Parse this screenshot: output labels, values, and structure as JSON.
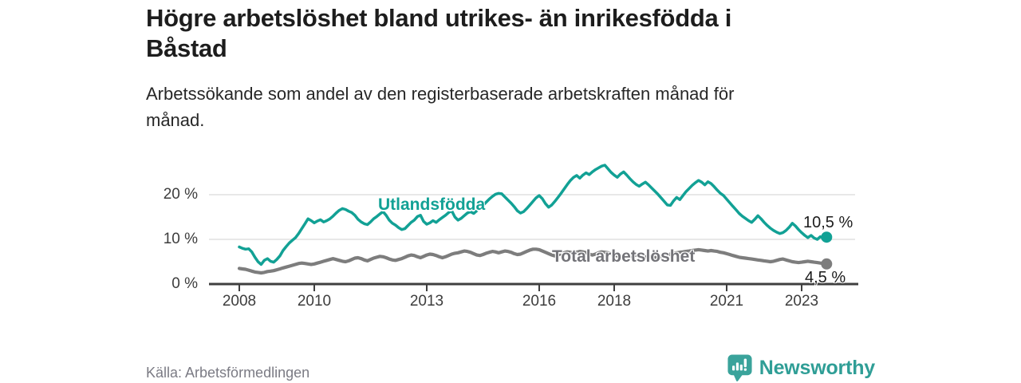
{
  "title": {
    "line1": "Högre arbetslöshet bland utrikes- än inrikesfödda i",
    "line2": "Båstad"
  },
  "subtitle": {
    "line1": "Arbetssökande som andel av den registerbaserade arbetskraften månad för",
    "line2": "månad."
  },
  "source": "Källa: Arbetsförmedlingen",
  "branding": {
    "name": "Newsworthy",
    "icon": "bar-chart-speech-bubble-icon",
    "wordmark_color": "#2f9e96",
    "icon_color": "#3aa39b"
  },
  "chart_data": {
    "type": "line",
    "unit": "%",
    "frequency": "monthly",
    "x_start": "2008-01",
    "x_end": "2023-09",
    "ylim": [
      0,
      30
    ],
    "grid": "horizontal",
    "axis_color": "#3f3f3f",
    "grid_color": "#d9d9d9",
    "y_tick_labels": [
      "20 %",
      "10 %",
      "0 %"
    ],
    "y_tick_values": [
      20,
      10,
      0
    ],
    "x_tick_labels": [
      "2008",
      "2010",
      "2013",
      "2016",
      "2018",
      "2021",
      "2023"
    ],
    "x_tick_years": [
      2008,
      2010,
      2013,
      2016,
      2018,
      2021,
      2023
    ],
    "series": [
      {
        "name": "Utlandsfödda",
        "color": "#12a195",
        "end_value": 10.5,
        "end_label": "10,5 %",
        "values": [
          8.3,
          8.0,
          7.8,
          7.9,
          7.2,
          6.0,
          5.0,
          4.4,
          5.3,
          5.7,
          5.1,
          4.9,
          5.5,
          6.3,
          7.5,
          8.4,
          9.2,
          9.8,
          10.4,
          11.3,
          12.4,
          13.5,
          14.6,
          14.2,
          13.7,
          14.1,
          14.4,
          13.9,
          14.2,
          14.6,
          15.2,
          15.9,
          16.5,
          16.9,
          16.7,
          16.3,
          16.0,
          15.4,
          14.5,
          13.9,
          13.5,
          13.3,
          13.9,
          14.6,
          15.1,
          15.7,
          16.2,
          15.4,
          14.3,
          13.6,
          13.2,
          12.6,
          12.2,
          12.4,
          13.1,
          13.8,
          14.3,
          15.1,
          15.4,
          14.0,
          13.4,
          13.7,
          14.2,
          13.8,
          14.4,
          14.9,
          15.4,
          16.0,
          16.4,
          15.0,
          14.3,
          14.7,
          15.3,
          15.9,
          16.2,
          15.8,
          16.4,
          17.0,
          17.6,
          18.3,
          19.0,
          19.6,
          20.1,
          20.3,
          20.2,
          19.5,
          18.8,
          18.1,
          17.3,
          16.4,
          15.9,
          16.2,
          16.9,
          17.7,
          18.5,
          19.3,
          19.8,
          19.1,
          18.0,
          17.2,
          17.7,
          18.5,
          19.4,
          20.3,
          21.3,
          22.3,
          23.2,
          23.9,
          24.3,
          23.7,
          24.4,
          24.9,
          24.5,
          25.1,
          25.6,
          26.0,
          26.4,
          26.6,
          25.8,
          25.0,
          24.4,
          23.9,
          24.6,
          25.1,
          24.4,
          23.6,
          22.9,
          22.3,
          21.9,
          22.4,
          22.8,
          22.2,
          21.5,
          20.8,
          20.1,
          19.3,
          18.5,
          17.7,
          17.6,
          18.6,
          19.4,
          18.9,
          19.8,
          20.7,
          21.4,
          22.1,
          22.7,
          23.2,
          22.8,
          22.2,
          22.9,
          22.5,
          21.8,
          21.0,
          20.3,
          19.8,
          19.0,
          18.2,
          17.4,
          16.6,
          15.8,
          15.2,
          14.7,
          14.2,
          13.8,
          14.5,
          15.3,
          14.6,
          13.8,
          13.1,
          12.5,
          12.0,
          11.6,
          11.3,
          11.5,
          12.0,
          12.7,
          13.6,
          13.0,
          12.2,
          11.5,
          10.9,
          10.4,
          10.9,
          10.3,
          10.0,
          10.6,
          10.2,
          10.5
        ]
      },
      {
        "name": "Total arbetslöshet",
        "color": "#7d7d7d",
        "end_value": 4.5,
        "end_label": "4,5 %",
        "values": [
          3.5,
          3.4,
          3.3,
          3.1,
          2.9,
          2.7,
          2.6,
          2.5,
          2.6,
          2.8,
          2.9,
          3.0,
          3.2,
          3.4,
          3.6,
          3.8,
          4.0,
          4.2,
          4.4,
          4.6,
          4.7,
          4.6,
          4.5,
          4.4,
          4.5,
          4.7,
          4.9,
          5.1,
          5.3,
          5.5,
          5.7,
          5.5,
          5.3,
          5.1,
          5.0,
          5.2,
          5.5,
          5.8,
          5.9,
          5.7,
          5.4,
          5.2,
          5.5,
          5.8,
          6.0,
          6.2,
          6.1,
          5.9,
          5.6,
          5.4,
          5.3,
          5.5,
          5.7,
          6.0,
          6.3,
          6.5,
          6.4,
          6.1,
          5.9,
          6.2,
          6.5,
          6.7,
          6.6,
          6.4,
          6.1,
          5.9,
          6.1,
          6.4,
          6.7,
          6.9,
          7.0,
          7.2,
          7.4,
          7.3,
          7.1,
          6.8,
          6.5,
          6.4,
          6.6,
          6.9,
          7.1,
          7.3,
          7.2,
          7.0,
          7.2,
          7.4,
          7.3,
          7.1,
          6.8,
          6.6,
          6.7,
          7.0,
          7.3,
          7.6,
          7.8,
          7.8,
          7.7,
          7.4,
          7.1,
          6.8,
          6.5,
          6.3,
          6.5,
          6.8,
          7.0,
          7.2,
          7.1,
          6.9,
          7.1,
          7.3,
          7.2,
          7.0,
          6.7,
          6.5,
          6.7,
          7.0,
          7.2,
          7.1,
          7.0,
          6.8,
          6.5,
          6.3,
          6.1,
          6.0,
          5.9,
          6.1,
          6.3,
          6.5,
          6.4,
          6.2,
          6.1,
          6.2,
          6.1,
          6.0,
          5.9,
          6.1,
          6.3,
          6.5,
          6.7,
          6.9,
          7.0,
          7.1,
          7.2,
          7.3,
          7.4,
          7.5,
          7.6,
          7.7,
          7.6,
          7.5,
          7.4,
          7.5,
          7.4,
          7.3,
          7.1,
          7.0,
          6.8,
          6.6,
          6.4,
          6.2,
          6.0,
          5.9,
          5.8,
          5.7,
          5.6,
          5.5,
          5.4,
          5.3,
          5.2,
          5.1,
          5.0,
          5.1,
          5.3,
          5.5,
          5.6,
          5.4,
          5.2,
          5.0,
          4.9,
          4.8,
          4.9,
          5.0,
          5.1,
          5.0,
          4.9,
          4.8,
          4.7,
          4.6,
          4.5
        ]
      }
    ]
  }
}
